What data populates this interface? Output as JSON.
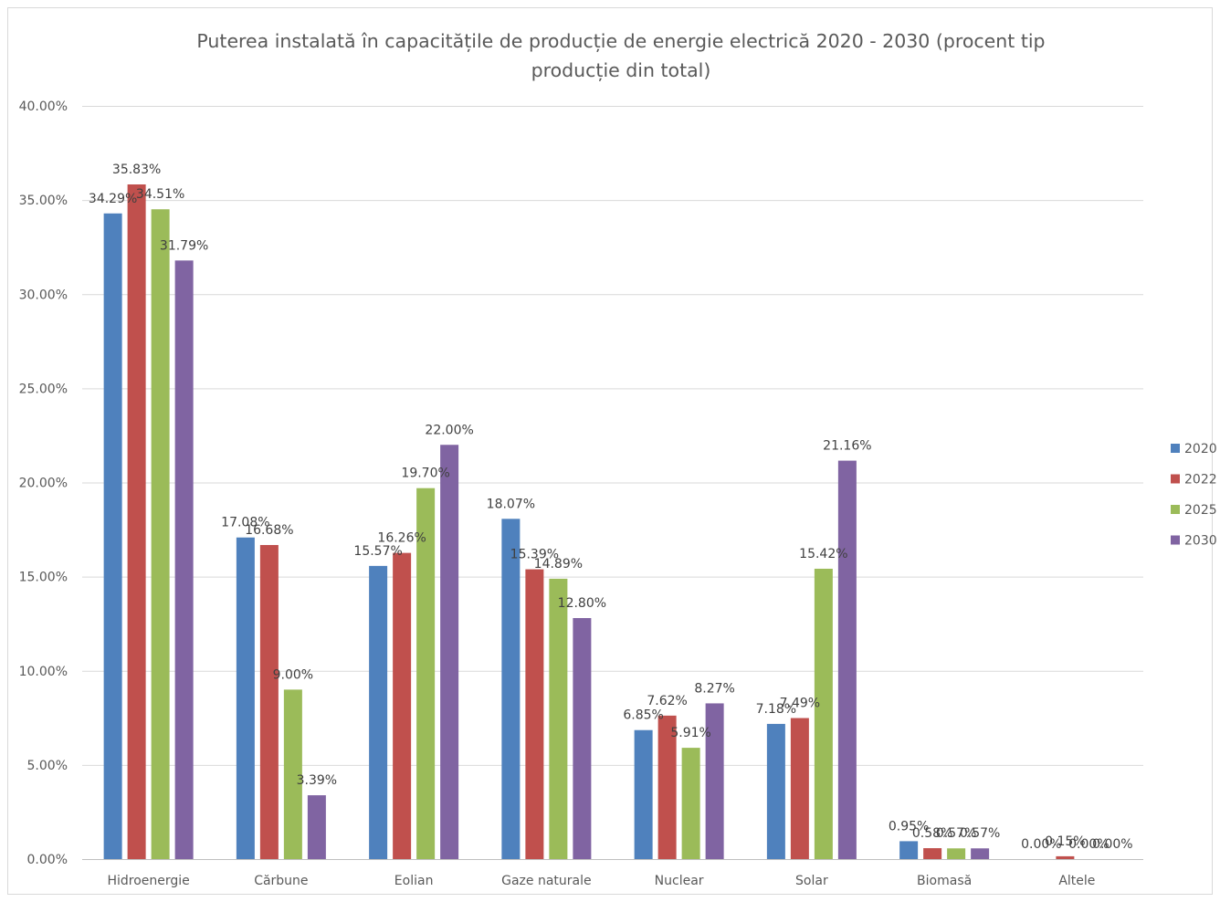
{
  "chart_data": {
    "type": "bar",
    "title_lines": [
      "Puterea instalată în capacitățile de producție de energie electrică 2020 - 2030 (procent tip",
      "producție din total)"
    ],
    "title": "Puterea instalată în capacitățile de producție de energie electrică 2020 - 2030 (procent tip producție din total)",
    "xlabel": "",
    "ylabel": "",
    "categories": [
      "Hidroenergie",
      "Cărbune",
      "Eolian",
      "Gaze naturale",
      "Nuclear",
      "Solar",
      "Biomasă",
      "Altele"
    ],
    "series": [
      {
        "name": "2020",
        "color": "#4f81bd",
        "values": [
          34.29,
          17.08,
          15.57,
          18.07,
          6.85,
          7.18,
          0.95,
          0.0
        ]
      },
      {
        "name": "2022",
        "color": "#c0504d",
        "values": [
          35.83,
          16.68,
          16.26,
          15.39,
          7.62,
          7.49,
          0.58,
          0.15
        ]
      },
      {
        "name": "2025",
        "color": "#9bbb59",
        "values": [
          34.51,
          9.0,
          19.7,
          14.89,
          5.91,
          15.42,
          0.57,
          0.0
        ]
      },
      {
        "name": "2030",
        "color": "#8064a2",
        "values": [
          31.79,
          3.39,
          22.0,
          12.8,
          8.27,
          21.16,
          0.57,
          0.0
        ]
      }
    ],
    "ylim": [
      0,
      40
    ],
    "yticks": [
      0,
      5,
      10,
      15,
      20,
      25,
      30,
      35,
      40
    ],
    "ytick_labels": [
      "0.00%",
      "5.00%",
      "10.00%",
      "15.00%",
      "20.00%",
      "25.00%",
      "30.00%",
      "35.00%",
      "40.00%"
    ],
    "value_format": "percent, 2 decimals",
    "grid": true,
    "legend_position": "right"
  }
}
